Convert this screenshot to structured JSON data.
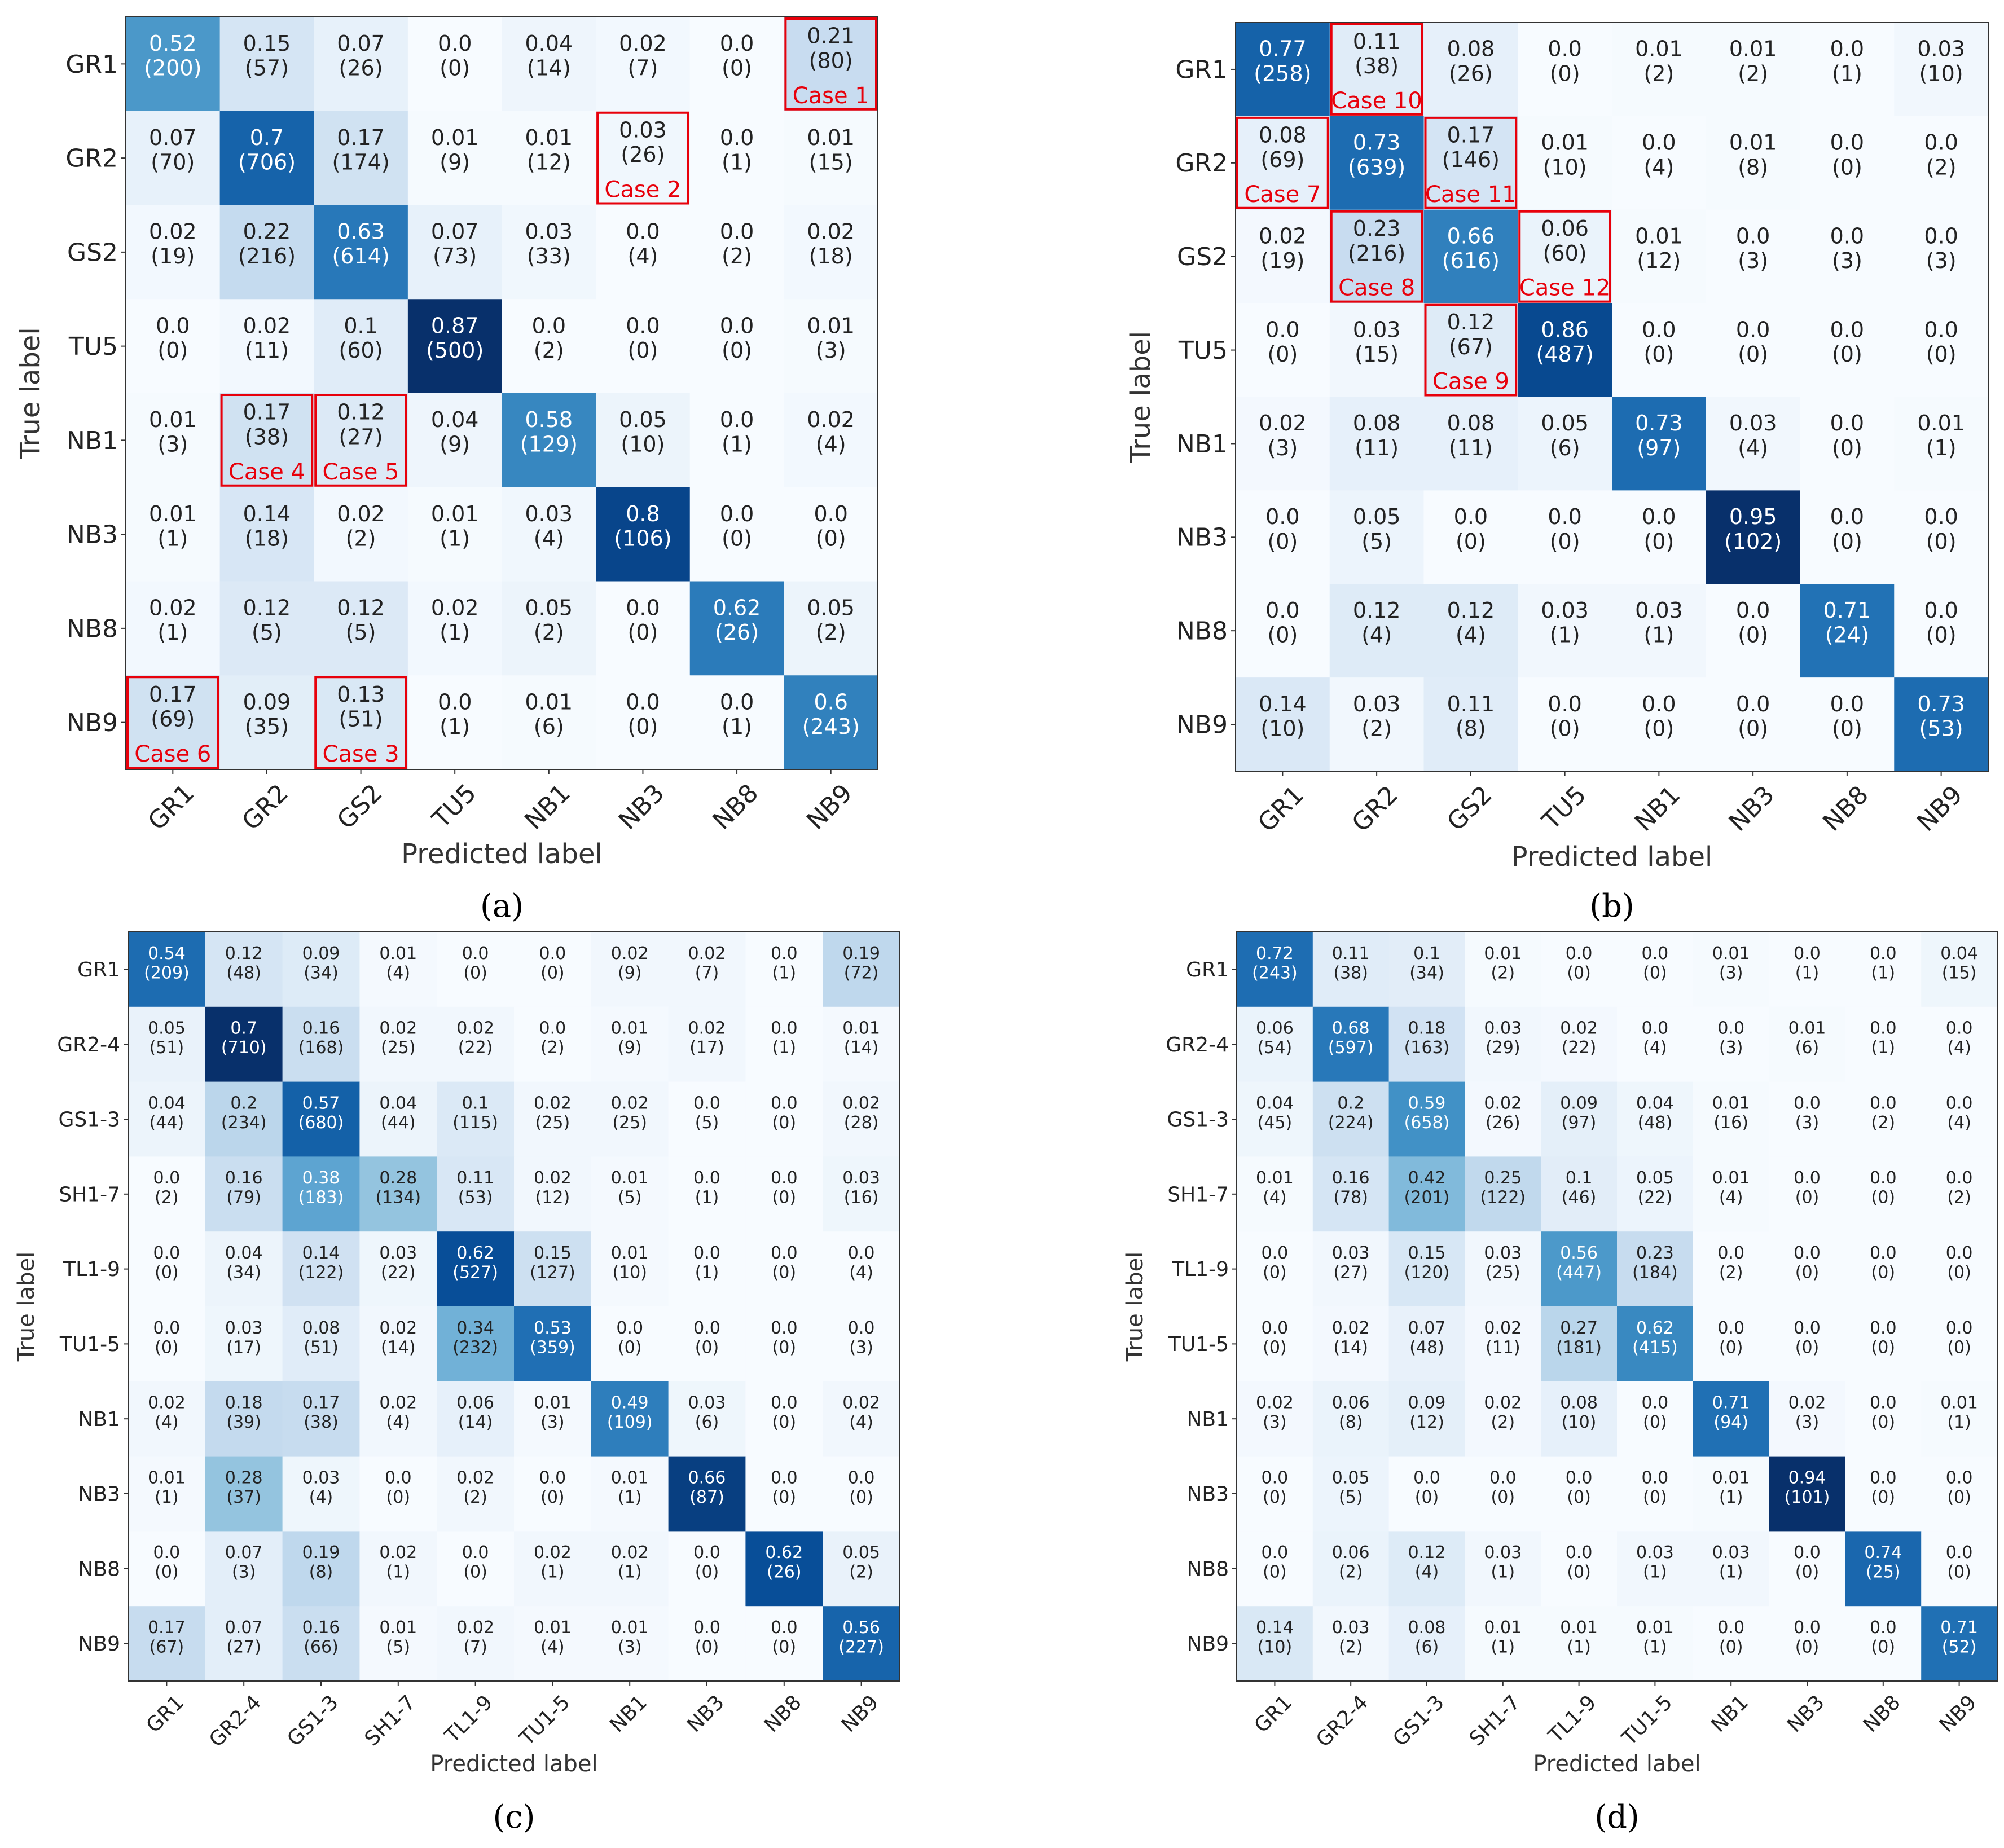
{
  "chart_data": [
    {
      "type": "heatmap",
      "caption": "(a)",
      "xlabel": "Predicted label",
      "ylabel": "True label",
      "labels": [
        "GR1",
        "GR2",
        "GS2",
        "TU5",
        "NB1",
        "NB3",
        "NB8",
        "NB9"
      ],
      "values": [
        [
          "0.52",
          "0.15",
          "0.07",
          "0.0",
          "0.04",
          "0.02",
          "0.0",
          "0.21"
        ],
        [
          "0.07",
          "0.7",
          "0.17",
          "0.01",
          "0.01",
          "0.03",
          "0.0",
          "0.01"
        ],
        [
          "0.02",
          "0.22",
          "0.63",
          "0.07",
          "0.03",
          "0.0",
          "0.0",
          "0.02"
        ],
        [
          "0.0",
          "0.02",
          "0.1",
          "0.87",
          "0.0",
          "0.0",
          "0.0",
          "0.01"
        ],
        [
          "0.01",
          "0.17",
          "0.12",
          "0.04",
          "0.58",
          "0.05",
          "0.0",
          "0.02"
        ],
        [
          "0.01",
          "0.14",
          "0.02",
          "0.01",
          "0.03",
          "0.8",
          "0.0",
          "0.0"
        ],
        [
          "0.02",
          "0.12",
          "0.12",
          "0.02",
          "0.05",
          "0.0",
          "0.62",
          "0.05"
        ],
        [
          "0.17",
          "0.09",
          "0.13",
          "0.0",
          "0.01",
          "0.0",
          "0.0",
          "0.6"
        ]
      ],
      "counts": [
        [
          "(200)",
          "(57)",
          "(26)",
          "(0)",
          "(14)",
          "(7)",
          "(0)",
          "(80)"
        ],
        [
          "(70)",
          "(706)",
          "(174)",
          "(9)",
          "(12)",
          "(26)",
          "(1)",
          "(15)"
        ],
        [
          "(19)",
          "(216)",
          "(614)",
          "(73)",
          "(33)",
          "(4)",
          "(2)",
          "(18)"
        ],
        [
          "(0)",
          "(11)",
          "(60)",
          "(500)",
          "(2)",
          "(0)",
          "(0)",
          "(3)"
        ],
        [
          "(3)",
          "(38)",
          "(27)",
          "(9)",
          "(129)",
          "(10)",
          "(1)",
          "(4)"
        ],
        [
          "(1)",
          "(18)",
          "(2)",
          "(1)",
          "(4)",
          "(106)",
          "(0)",
          "(0)"
        ],
        [
          "(1)",
          "(5)",
          "(5)",
          "(1)",
          "(2)",
          "(0)",
          "(26)",
          "(2)"
        ],
        [
          "(69)",
          "(35)",
          "(51)",
          "(1)",
          "(6)",
          "(0)",
          "(1)",
          "(243)"
        ]
      ],
      "cases": [
        {
          "row": 0,
          "col": 7,
          "label": "Case 1"
        },
        {
          "row": 1,
          "col": 5,
          "label": "Case 2"
        },
        {
          "row": 7,
          "col": 2,
          "label": "Case 3"
        },
        {
          "row": 4,
          "col": 1,
          "label": "Case 4"
        },
        {
          "row": 4,
          "col": 2,
          "label": "Case 5"
        },
        {
          "row": 7,
          "col": 0,
          "label": "Case 6"
        }
      ]
    },
    {
      "type": "heatmap",
      "caption": "(b)",
      "xlabel": "Predicted label",
      "ylabel": "True label",
      "labels": [
        "GR1",
        "GR2",
        "GS2",
        "TU5",
        "NB1",
        "NB3",
        "NB8",
        "NB9"
      ],
      "values": [
        [
          "0.77",
          "0.11",
          "0.08",
          "0.0",
          "0.01",
          "0.01",
          "0.0",
          "0.03"
        ],
        [
          "0.08",
          "0.73",
          "0.17",
          "0.01",
          "0.0",
          "0.01",
          "0.0",
          "0.0"
        ],
        [
          "0.02",
          "0.23",
          "0.66",
          "0.06",
          "0.01",
          "0.0",
          "0.0",
          "0.0"
        ],
        [
          "0.0",
          "0.03",
          "0.12",
          "0.86",
          "0.0",
          "0.0",
          "0.0",
          "0.0"
        ],
        [
          "0.02",
          "0.08",
          "0.08",
          "0.05",
          "0.73",
          "0.03",
          "0.0",
          "0.01"
        ],
        [
          "0.0",
          "0.05",
          "0.0",
          "0.0",
          "0.0",
          "0.95",
          "0.0",
          "0.0"
        ],
        [
          "0.0",
          "0.12",
          "0.12",
          "0.03",
          "0.03",
          "0.0",
          "0.71",
          "0.0"
        ],
        [
          "0.14",
          "0.03",
          "0.11",
          "0.0",
          "0.0",
          "0.0",
          "0.0",
          "0.73"
        ]
      ],
      "counts": [
        [
          "(258)",
          "(38)",
          "(26)",
          "(0)",
          "(2)",
          "(2)",
          "(1)",
          "(10)"
        ],
        [
          "(69)",
          "(639)",
          "(146)",
          "(10)",
          "(4)",
          "(8)",
          "(0)",
          "(2)"
        ],
        [
          "(19)",
          "(216)",
          "(616)",
          "(60)",
          "(12)",
          "(3)",
          "(3)",
          "(3)"
        ],
        [
          "(0)",
          "(15)",
          "(67)",
          "(487)",
          "(0)",
          "(0)",
          "(0)",
          "(0)"
        ],
        [
          "(3)",
          "(11)",
          "(11)",
          "(6)",
          "(97)",
          "(4)",
          "(0)",
          "(1)"
        ],
        [
          "(0)",
          "(5)",
          "(0)",
          "(0)",
          "(0)",
          "(102)",
          "(0)",
          "(0)"
        ],
        [
          "(0)",
          "(4)",
          "(4)",
          "(1)",
          "(1)",
          "(0)",
          "(24)",
          "(0)"
        ],
        [
          "(10)",
          "(2)",
          "(8)",
          "(0)",
          "(0)",
          "(0)",
          "(0)",
          "(53)"
        ]
      ],
      "cases": [
        {
          "row": 1,
          "col": 0,
          "label": "Case 7"
        },
        {
          "row": 2,
          "col": 1,
          "label": "Case 8"
        },
        {
          "row": 3,
          "col": 2,
          "label": "Case 9"
        },
        {
          "row": 0,
          "col": 1,
          "label": "Case 10"
        },
        {
          "row": 1,
          "col": 2,
          "label": "Case 11"
        },
        {
          "row": 2,
          "col": 3,
          "label": "Case 12"
        }
      ]
    },
    {
      "type": "heatmap",
      "caption": "(c)",
      "xlabel": "Predicted label",
      "ylabel": "True label",
      "labels": [
        "GR1",
        "GR2-4",
        "GS1-3",
        "SH1-7",
        "TL1-9",
        "TU1-5",
        "NB1",
        "NB3",
        "NB8",
        "NB9"
      ],
      "values": [
        [
          "0.54",
          "0.12",
          "0.09",
          "0.01",
          "0.0",
          "0.0",
          "0.02",
          "0.02",
          "0.0",
          "0.19"
        ],
        [
          "0.05",
          "0.7",
          "0.16",
          "0.02",
          "0.02",
          "0.0",
          "0.01",
          "0.02",
          "0.0",
          "0.01"
        ],
        [
          "0.04",
          "0.2",
          "0.57",
          "0.04",
          "0.1",
          "0.02",
          "0.02",
          "0.0",
          "0.0",
          "0.02"
        ],
        [
          "0.0",
          "0.16",
          "0.38",
          "0.28",
          "0.11",
          "0.02",
          "0.01",
          "0.0",
          "0.0",
          "0.03"
        ],
        [
          "0.0",
          "0.04",
          "0.14",
          "0.03",
          "0.62",
          "0.15",
          "0.01",
          "0.0",
          "0.0",
          "0.0"
        ],
        [
          "0.0",
          "0.03",
          "0.08",
          "0.02",
          "0.34",
          "0.53",
          "0.0",
          "0.0",
          "0.0",
          "0.0"
        ],
        [
          "0.02",
          "0.18",
          "0.17",
          "0.02",
          "0.06",
          "0.01",
          "0.49",
          "0.03",
          "0.0",
          "0.02"
        ],
        [
          "0.01",
          "0.28",
          "0.03",
          "0.0",
          "0.02",
          "0.0",
          "0.01",
          "0.66",
          "0.0",
          "0.0"
        ],
        [
          "0.0",
          "0.07",
          "0.19",
          "0.02",
          "0.0",
          "0.02",
          "0.02",
          "0.0",
          "0.62",
          "0.05"
        ],
        [
          "0.17",
          "0.07",
          "0.16",
          "0.01",
          "0.02",
          "0.01",
          "0.01",
          "0.0",
          "0.0",
          "0.56"
        ]
      ],
      "counts": [
        [
          "(209)",
          "(48)",
          "(34)",
          "(4)",
          "(0)",
          "(0)",
          "(9)",
          "(7)",
          "(1)",
          "(72)"
        ],
        [
          "(51)",
          "(710)",
          "(168)",
          "(25)",
          "(22)",
          "(2)",
          "(9)",
          "(17)",
          "(1)",
          "(14)"
        ],
        [
          "(44)",
          "(234)",
          "(680)",
          "(44)",
          "(115)",
          "(25)",
          "(25)",
          "(5)",
          "(0)",
          "(28)"
        ],
        [
          "(2)",
          "(79)",
          "(183)",
          "(134)",
          "(53)",
          "(12)",
          "(5)",
          "(1)",
          "(0)",
          "(16)"
        ],
        [
          "(0)",
          "(34)",
          "(122)",
          "(22)",
          "(527)",
          "(127)",
          "(10)",
          "(1)",
          "(0)",
          "(4)"
        ],
        [
          "(0)",
          "(17)",
          "(51)",
          "(14)",
          "(232)",
          "(359)",
          "(0)",
          "(0)",
          "(0)",
          "(3)"
        ],
        [
          "(4)",
          "(39)",
          "(38)",
          "(4)",
          "(14)",
          "(3)",
          "(109)",
          "(6)",
          "(0)",
          "(4)"
        ],
        [
          "(1)",
          "(37)",
          "(4)",
          "(0)",
          "(2)",
          "(0)",
          "(1)",
          "(87)",
          "(0)",
          "(0)"
        ],
        [
          "(0)",
          "(3)",
          "(8)",
          "(1)",
          "(0)",
          "(1)",
          "(1)",
          "(0)",
          "(26)",
          "(2)"
        ],
        [
          "(67)",
          "(27)",
          "(66)",
          "(5)",
          "(7)",
          "(4)",
          "(3)",
          "(0)",
          "(0)",
          "(227)"
        ]
      ],
      "cases": []
    },
    {
      "type": "heatmap",
      "caption": "(d)",
      "xlabel": "Predicted label",
      "ylabel": "True label",
      "labels": [
        "GR1",
        "GR2-4",
        "GS1-3",
        "SH1-7",
        "TL1-9",
        "TU1-5",
        "NB1",
        "NB3",
        "NB8",
        "NB9"
      ],
      "values": [
        [
          "0.72",
          "0.11",
          "0.1",
          "0.01",
          "0.0",
          "0.0",
          "0.01",
          "0.0",
          "0.0",
          "0.04"
        ],
        [
          "0.06",
          "0.68",
          "0.18",
          "0.03",
          "0.02",
          "0.0",
          "0.0",
          "0.01",
          "0.0",
          "0.0"
        ],
        [
          "0.04",
          "0.2",
          "0.59",
          "0.02",
          "0.09",
          "0.04",
          "0.01",
          "0.0",
          "0.0",
          "0.0"
        ],
        [
          "0.01",
          "0.16",
          "0.42",
          "0.25",
          "0.1",
          "0.05",
          "0.01",
          "0.0",
          "0.0",
          "0.0"
        ],
        [
          "0.0",
          "0.03",
          "0.15",
          "0.03",
          "0.56",
          "0.23",
          "0.0",
          "0.0",
          "0.0",
          "0.0"
        ],
        [
          "0.0",
          "0.02",
          "0.07",
          "0.02",
          "0.27",
          "0.62",
          "0.0",
          "0.0",
          "0.0",
          "0.0"
        ],
        [
          "0.02",
          "0.06",
          "0.09",
          "0.02",
          "0.08",
          "0.0",
          "0.71",
          "0.02",
          "0.0",
          "0.01"
        ],
        [
          "0.0",
          "0.05",
          "0.0",
          "0.0",
          "0.0",
          "0.0",
          "0.01",
          "0.94",
          "0.0",
          "0.0"
        ],
        [
          "0.0",
          "0.06",
          "0.12",
          "0.03",
          "0.0",
          "0.03",
          "0.03",
          "0.0",
          "0.74",
          "0.0"
        ],
        [
          "0.14",
          "0.03",
          "0.08",
          "0.01",
          "0.01",
          "0.01",
          "0.0",
          "0.0",
          "0.0",
          "0.71"
        ]
      ],
      "counts": [
        [
          "(243)",
          "(38)",
          "(34)",
          "(2)",
          "(0)",
          "(0)",
          "(3)",
          "(1)",
          "(1)",
          "(15)"
        ],
        [
          "(54)",
          "(597)",
          "(163)",
          "(29)",
          "(22)",
          "(4)",
          "(3)",
          "(6)",
          "(1)",
          "(4)"
        ],
        [
          "(45)",
          "(224)",
          "(658)",
          "(26)",
          "(97)",
          "(48)",
          "(16)",
          "(3)",
          "(2)",
          "(4)"
        ],
        [
          "(4)",
          "(78)",
          "(201)",
          "(122)",
          "(46)",
          "(22)",
          "(4)",
          "(0)",
          "(0)",
          "(2)"
        ],
        [
          "(0)",
          "(27)",
          "(120)",
          "(25)",
          "(447)",
          "(184)",
          "(2)",
          "(0)",
          "(0)",
          "(0)"
        ],
        [
          "(0)",
          "(14)",
          "(48)",
          "(11)",
          "(181)",
          "(415)",
          "(0)",
          "(0)",
          "(0)",
          "(0)"
        ],
        [
          "(3)",
          "(8)",
          "(12)",
          "(2)",
          "(10)",
          "(0)",
          "(94)",
          "(3)",
          "(0)",
          "(1)"
        ],
        [
          "(0)",
          "(5)",
          "(0)",
          "(0)",
          "(0)",
          "(0)",
          "(1)",
          "(101)",
          "(0)",
          "(0)"
        ],
        [
          "(0)",
          "(2)",
          "(4)",
          "(1)",
          "(0)",
          "(1)",
          "(1)",
          "(0)",
          "(25)",
          "(0)"
        ],
        [
          "(10)",
          "(2)",
          "(6)",
          "(1)",
          "(1)",
          "(1)",
          "(0)",
          "(0)",
          "(0)",
          "(52)"
        ]
      ],
      "cases": []
    }
  ]
}
